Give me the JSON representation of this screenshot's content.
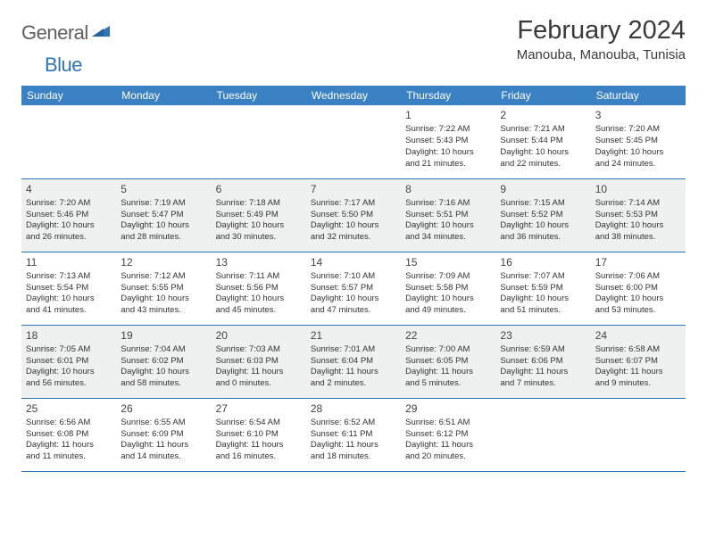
{
  "logo": {
    "word1": "General",
    "word2": "Blue"
  },
  "title": "February 2024",
  "location": "Manouba, Manouba, Tunisia",
  "colors": {
    "header_bg": "#3a81c3",
    "header_text": "#ffffff",
    "rule": "#2f74b5",
    "row_even_bg": "#eff0f0",
    "row_odd_bg": "#ffffff",
    "body_text": "#333333",
    "logo_gray": "#5f5f5f",
    "logo_blue": "#2f74b5"
  },
  "weekdays": [
    "Sunday",
    "Monday",
    "Tuesday",
    "Wednesday",
    "Thursday",
    "Friday",
    "Saturday"
  ],
  "weeks": [
    [
      null,
      null,
      null,
      null,
      {
        "n": "1",
        "sr": "Sunrise: 7:22 AM",
        "ss": "Sunset: 5:43 PM",
        "d1": "Daylight: 10 hours",
        "d2": "and 21 minutes."
      },
      {
        "n": "2",
        "sr": "Sunrise: 7:21 AM",
        "ss": "Sunset: 5:44 PM",
        "d1": "Daylight: 10 hours",
        "d2": "and 22 minutes."
      },
      {
        "n": "3",
        "sr": "Sunrise: 7:20 AM",
        "ss": "Sunset: 5:45 PM",
        "d1": "Daylight: 10 hours",
        "d2": "and 24 minutes."
      }
    ],
    [
      {
        "n": "4",
        "sr": "Sunrise: 7:20 AM",
        "ss": "Sunset: 5:46 PM",
        "d1": "Daylight: 10 hours",
        "d2": "and 26 minutes."
      },
      {
        "n": "5",
        "sr": "Sunrise: 7:19 AM",
        "ss": "Sunset: 5:47 PM",
        "d1": "Daylight: 10 hours",
        "d2": "and 28 minutes."
      },
      {
        "n": "6",
        "sr": "Sunrise: 7:18 AM",
        "ss": "Sunset: 5:49 PM",
        "d1": "Daylight: 10 hours",
        "d2": "and 30 minutes."
      },
      {
        "n": "7",
        "sr": "Sunrise: 7:17 AM",
        "ss": "Sunset: 5:50 PM",
        "d1": "Daylight: 10 hours",
        "d2": "and 32 minutes."
      },
      {
        "n": "8",
        "sr": "Sunrise: 7:16 AM",
        "ss": "Sunset: 5:51 PM",
        "d1": "Daylight: 10 hours",
        "d2": "and 34 minutes."
      },
      {
        "n": "9",
        "sr": "Sunrise: 7:15 AM",
        "ss": "Sunset: 5:52 PM",
        "d1": "Daylight: 10 hours",
        "d2": "and 36 minutes."
      },
      {
        "n": "10",
        "sr": "Sunrise: 7:14 AM",
        "ss": "Sunset: 5:53 PM",
        "d1": "Daylight: 10 hours",
        "d2": "and 38 minutes."
      }
    ],
    [
      {
        "n": "11",
        "sr": "Sunrise: 7:13 AM",
        "ss": "Sunset: 5:54 PM",
        "d1": "Daylight: 10 hours",
        "d2": "and 41 minutes."
      },
      {
        "n": "12",
        "sr": "Sunrise: 7:12 AM",
        "ss": "Sunset: 5:55 PM",
        "d1": "Daylight: 10 hours",
        "d2": "and 43 minutes."
      },
      {
        "n": "13",
        "sr": "Sunrise: 7:11 AM",
        "ss": "Sunset: 5:56 PM",
        "d1": "Daylight: 10 hours",
        "d2": "and 45 minutes."
      },
      {
        "n": "14",
        "sr": "Sunrise: 7:10 AM",
        "ss": "Sunset: 5:57 PM",
        "d1": "Daylight: 10 hours",
        "d2": "and 47 minutes."
      },
      {
        "n": "15",
        "sr": "Sunrise: 7:09 AM",
        "ss": "Sunset: 5:58 PM",
        "d1": "Daylight: 10 hours",
        "d2": "and 49 minutes."
      },
      {
        "n": "16",
        "sr": "Sunrise: 7:07 AM",
        "ss": "Sunset: 5:59 PM",
        "d1": "Daylight: 10 hours",
        "d2": "and 51 minutes."
      },
      {
        "n": "17",
        "sr": "Sunrise: 7:06 AM",
        "ss": "Sunset: 6:00 PM",
        "d1": "Daylight: 10 hours",
        "d2": "and 53 minutes."
      }
    ],
    [
      {
        "n": "18",
        "sr": "Sunrise: 7:05 AM",
        "ss": "Sunset: 6:01 PM",
        "d1": "Daylight: 10 hours",
        "d2": "and 56 minutes."
      },
      {
        "n": "19",
        "sr": "Sunrise: 7:04 AM",
        "ss": "Sunset: 6:02 PM",
        "d1": "Daylight: 10 hours",
        "d2": "and 58 minutes."
      },
      {
        "n": "20",
        "sr": "Sunrise: 7:03 AM",
        "ss": "Sunset: 6:03 PM",
        "d1": "Daylight: 11 hours",
        "d2": "and 0 minutes."
      },
      {
        "n": "21",
        "sr": "Sunrise: 7:01 AM",
        "ss": "Sunset: 6:04 PM",
        "d1": "Daylight: 11 hours",
        "d2": "and 2 minutes."
      },
      {
        "n": "22",
        "sr": "Sunrise: 7:00 AM",
        "ss": "Sunset: 6:05 PM",
        "d1": "Daylight: 11 hours",
        "d2": "and 5 minutes."
      },
      {
        "n": "23",
        "sr": "Sunrise: 6:59 AM",
        "ss": "Sunset: 6:06 PM",
        "d1": "Daylight: 11 hours",
        "d2": "and 7 minutes."
      },
      {
        "n": "24",
        "sr": "Sunrise: 6:58 AM",
        "ss": "Sunset: 6:07 PM",
        "d1": "Daylight: 11 hours",
        "d2": "and 9 minutes."
      }
    ],
    [
      {
        "n": "25",
        "sr": "Sunrise: 6:56 AM",
        "ss": "Sunset: 6:08 PM",
        "d1": "Daylight: 11 hours",
        "d2": "and 11 minutes."
      },
      {
        "n": "26",
        "sr": "Sunrise: 6:55 AM",
        "ss": "Sunset: 6:09 PM",
        "d1": "Daylight: 11 hours",
        "d2": "and 14 minutes."
      },
      {
        "n": "27",
        "sr": "Sunrise: 6:54 AM",
        "ss": "Sunset: 6:10 PM",
        "d1": "Daylight: 11 hours",
        "d2": "and 16 minutes."
      },
      {
        "n": "28",
        "sr": "Sunrise: 6:52 AM",
        "ss": "Sunset: 6:11 PM",
        "d1": "Daylight: 11 hours",
        "d2": "and 18 minutes."
      },
      {
        "n": "29",
        "sr": "Sunrise: 6:51 AM",
        "ss": "Sunset: 6:12 PM",
        "d1": "Daylight: 11 hours",
        "d2": "and 20 minutes."
      },
      null,
      null
    ]
  ]
}
